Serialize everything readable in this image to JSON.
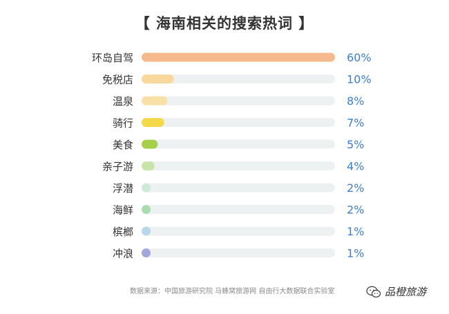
{
  "chart_data": {
    "type": "bar",
    "orientation": "horizontal",
    "title": "【 海南相关的搜索热词 】",
    "categories": [
      "环岛自驾",
      "免税店",
      "温泉",
      "骑行",
      "美食",
      "亲子游",
      "浮潜",
      "海鲜",
      "槟榔",
      "冲浪"
    ],
    "values": [
      60,
      10,
      8,
      7,
      5,
      4,
      2,
      2,
      1,
      1
    ],
    "value_labels": [
      "60%",
      "10%",
      "8%",
      "7%",
      "5%",
      "4%",
      "2%",
      "2%",
      "1%",
      "1%"
    ],
    "xlim": [
      0,
      60
    ],
    "bar_colors": [
      "#f6b98d",
      "#f9d89e",
      "#f8e0a6",
      "#f6d94a",
      "#a6cf4a",
      "#c9e4a8",
      "#cfe9d4",
      "#a9dcb1",
      "#b8d8ea",
      "#a3a7dc"
    ],
    "track_color": "#eef1f2",
    "value_label_color": "#3a7fd0",
    "grid": false,
    "legend": "none"
  },
  "footer": {
    "source_note": "数据来源：中国旅游研究院  马蜂窝旅游网  自由行大数据联合实验室",
    "watermark": "品橙旅游",
    "watermark_icon": "wechat-icon"
  }
}
